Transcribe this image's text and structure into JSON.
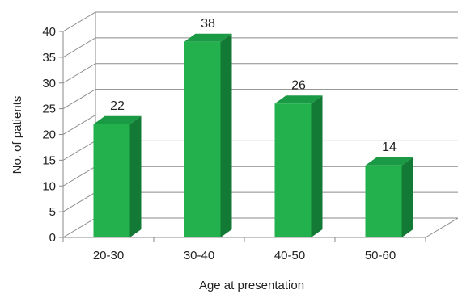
{
  "chart_data": {
    "type": "bar",
    "categories": [
      "20-30",
      "30-40",
      "40-50",
      "50-60"
    ],
    "values": [
      22,
      38,
      26,
      14
    ],
    "data_labels": [
      "22",
      "38",
      "26",
      "14"
    ],
    "title": "",
    "xlabel": "Age at presentation",
    "ylabel": "No. of patients",
    "ylim": [
      0,
      40
    ],
    "yticks": [
      0,
      5,
      10,
      15,
      20,
      25,
      30,
      35,
      40
    ],
    "grid": true,
    "three_d": true,
    "colors": {
      "bar_front": "#22b14c",
      "bar_side": "#137a35",
      "bar_top": "#1b9a45",
      "grid": "#8a8a8a"
    }
  }
}
